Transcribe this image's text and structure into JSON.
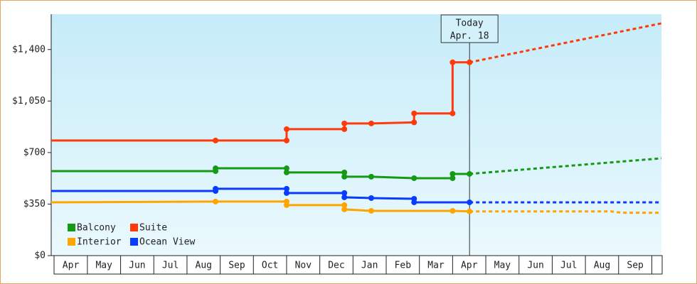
{
  "chart_data": {
    "type": "line",
    "annotation": {
      "lines": [
        "Today",
        "Apr. 18"
      ],
      "x": 12.51
    },
    "xlim": [
      -0.09,
      18.29
    ],
    "xticks": [
      {
        "value": 0.5,
        "label": "Apr"
      },
      {
        "value": 1.5,
        "label": "May"
      },
      {
        "value": 2.5,
        "label": "Jun"
      },
      {
        "value": 3.5,
        "label": "Jul"
      },
      {
        "value": 4.5,
        "label": "Aug"
      },
      {
        "value": 5.5,
        "label": "Sep"
      },
      {
        "value": 6.5,
        "label": "Oct"
      },
      {
        "value": 7.5,
        "label": "Nov"
      },
      {
        "value": 8.5,
        "label": "Dec"
      },
      {
        "value": 9.5,
        "label": "Jan"
      },
      {
        "value": 10.5,
        "label": "Feb"
      },
      {
        "value": 11.5,
        "label": "Mar"
      },
      {
        "value": 12.5,
        "label": "Apr"
      },
      {
        "value": 13.5,
        "label": "May"
      },
      {
        "value": 14.5,
        "label": "Jun"
      },
      {
        "value": 15.5,
        "label": "Jul"
      },
      {
        "value": 16.5,
        "label": "Aug"
      },
      {
        "value": 17.5,
        "label": "Sep"
      }
    ],
    "ylim": [
      0,
      1640
    ],
    "yticks": [
      {
        "value": 0,
        "label": "$0"
      },
      {
        "value": 350,
        "label": "$350"
      },
      {
        "value": 700,
        "label": "$700"
      },
      {
        "value": 1050,
        "label": "$1,050"
      },
      {
        "value": 1400,
        "label": "$1,400"
      }
    ],
    "series": [
      {
        "name": "Balcony",
        "color": "#159a15",
        "x": [
          -0.09,
          4.86,
          4.86,
          7.0,
          7.0,
          8.74,
          8.74,
          9.55,
          10.84,
          12.0,
          12.0,
          12.51
        ],
        "values": [
          574,
          574,
          593,
          593,
          565,
          565,
          536,
          536,
          526,
          526,
          555,
          555
        ],
        "forecast_x": [
          12.51,
          18.29
        ],
        "forecast_values": [
          555,
          661
        ]
      },
      {
        "name": "Suite",
        "color": "#ff3a0a",
        "x": [
          -0.09,
          4.86,
          7.0,
          7.0,
          8.74,
          8.74,
          9.55,
          10.84,
          10.84,
          12.0,
          12.0,
          12.51
        ],
        "values": [
          782,
          782,
          782,
          859,
          859,
          898,
          898,
          905,
          966,
          966,
          1313,
          1313
        ],
        "forecast_x": [
          12.51,
          18.29
        ],
        "forecast_values": [
          1313,
          1578
        ]
      },
      {
        "name": "Interior",
        "color": "#ffa500",
        "x": [
          -0.09,
          4.86,
          7.0,
          7.0,
          8.74,
          8.74,
          9.55,
          12.0,
          12.51
        ],
        "values": [
          362,
          367,
          367,
          343,
          343,
          314,
          304,
          304,
          300
        ],
        "forecast_x": [
          12.51,
          16.79,
          17.1,
          18.29
        ],
        "forecast_values": [
          300,
          300,
          291,
          291
        ]
      },
      {
        "name": "Ocean View",
        "color": "#0a3cff",
        "x": [
          -0.09,
          4.86,
          4.86,
          7.0,
          7.0,
          8.74,
          8.74,
          9.55,
          10.84,
          10.84,
          12.51
        ],
        "values": [
          439,
          439,
          454,
          454,
          425,
          425,
          396,
          391,
          386,
          362,
          362
        ],
        "forecast_x": [
          12.51,
          18.29
        ],
        "forecast_values": [
          362,
          362
        ]
      }
    ]
  }
}
